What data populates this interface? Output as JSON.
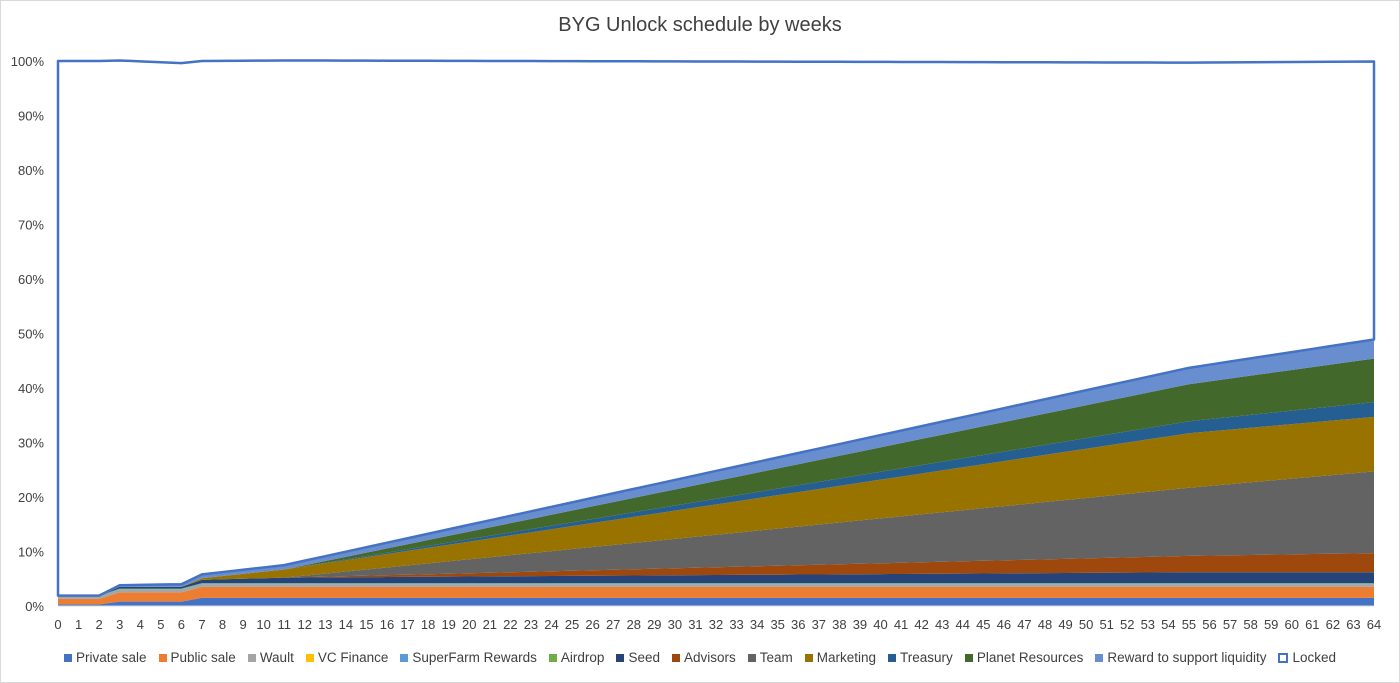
{
  "chart_data": {
    "type": "area",
    "stacked": true,
    "title": "BYG Unlock schedule by weeks",
    "x": [
      0,
      1,
      2,
      3,
      4,
      5,
      6,
      7,
      8,
      9,
      10,
      11,
      12,
      13,
      14,
      15,
      16,
      17,
      18,
      19,
      20,
      21,
      22,
      23,
      24,
      25,
      26,
      27,
      28,
      29,
      30,
      31,
      32,
      33,
      34,
      35,
      36,
      37,
      38,
      39,
      40,
      41,
      42,
      43,
      44,
      45,
      46,
      47,
      48,
      49,
      50,
      51,
      52,
      53,
      54,
      55,
      56,
      57,
      58,
      59,
      60,
      61,
      62,
      63,
      64
    ],
    "ylim": [
      0,
      100
    ],
    "y_ticks": [
      "0%",
      "10%",
      "20%",
      "30%",
      "40%",
      "50%",
      "60%",
      "70%",
      "80%",
      "90%",
      "100%"
    ],
    "grid": false,
    "legend_position": "bottom",
    "series_info": [
      {
        "name": "Private sale",
        "color": "#4472c4"
      },
      {
        "name": "Public sale",
        "color": "#ed7d31"
      },
      {
        "name": "Wault",
        "color": "#a5a5a5"
      },
      {
        "name": "VC Finance",
        "color": "#ffc000"
      },
      {
        "name": "SuperFarm Rewards",
        "color": "#5b9bd5"
      },
      {
        "name": "Airdrop",
        "color": "#70ad47"
      },
      {
        "name": "Seed",
        "color": "#264478"
      },
      {
        "name": "Advisors",
        "color": "#9e480e"
      },
      {
        "name": "Team",
        "color": "#636363"
      },
      {
        "name": "Marketing",
        "color": "#997300"
      },
      {
        "name": "Treasury",
        "color": "#255e91"
      },
      {
        "name": "Planet Resources",
        "color": "#43682b"
      },
      {
        "name": "Reward to support liquidity",
        "color": "#698ed0"
      },
      {
        "name": "Locked",
        "color": "#4472c4",
        "style": "outline"
      }
    ],
    "series": [
      {
        "name": "Private sale",
        "keypoints": [
          [
            0,
            0.3
          ],
          [
            2,
            0.3
          ],
          [
            3,
            0.8
          ],
          [
            6,
            0.8
          ],
          [
            7,
            1.5
          ],
          [
            64,
            1.5
          ]
        ]
      },
      {
        "name": "Public sale",
        "keypoints": [
          [
            0,
            1.0
          ],
          [
            2,
            1.0
          ],
          [
            3,
            1.7
          ],
          [
            6,
            1.7
          ],
          [
            7,
            2.0
          ],
          [
            64,
            2.0
          ]
        ]
      },
      {
        "name": "Wault",
        "keypoints": [
          [
            0,
            0.4
          ],
          [
            2,
            0.4
          ],
          [
            3,
            0.5
          ],
          [
            64,
            0.5
          ]
        ]
      },
      {
        "name": "VC Finance",
        "keypoints": [
          [
            0,
            0
          ],
          [
            64,
            0
          ]
        ]
      },
      {
        "name": "SuperFarm Rewards",
        "keypoints": [
          [
            0,
            0.1
          ],
          [
            64,
            0.1
          ]
        ]
      },
      {
        "name": "Airdrop",
        "keypoints": [
          [
            0,
            0.1
          ],
          [
            64,
            0.1
          ]
        ]
      },
      {
        "name": "Seed",
        "keypoints": [
          [
            0,
            0
          ],
          [
            2,
            0
          ],
          [
            3,
            0.3
          ],
          [
            6,
            0.3
          ],
          [
            7,
            0.6
          ],
          [
            11,
            1.0
          ],
          [
            55,
            2.0
          ],
          [
            64,
            2.0
          ]
        ]
      },
      {
        "name": "Advisors",
        "keypoints": [
          [
            0,
            0
          ],
          [
            11,
            0
          ],
          [
            55,
            3.0
          ],
          [
            64,
            3.5
          ]
        ]
      },
      {
        "name": "Team",
        "keypoints": [
          [
            0,
            0
          ],
          [
            11,
            0
          ],
          [
            55,
            12.5
          ],
          [
            64,
            15.0
          ]
        ]
      },
      {
        "name": "Marketing",
        "keypoints": [
          [
            0,
            0
          ],
          [
            6,
            0
          ],
          [
            7,
            0.3
          ],
          [
            11,
            1.5
          ],
          [
            55,
            10.0
          ],
          [
            64,
            10.0
          ]
        ]
      },
      {
        "name": "Treasury",
        "keypoints": [
          [
            0,
            0
          ],
          [
            11,
            0
          ],
          [
            55,
            2.2
          ],
          [
            64,
            2.7
          ]
        ]
      },
      {
        "name": "Planet Resources",
        "keypoints": [
          [
            0,
            0
          ],
          [
            11,
            0
          ],
          [
            55,
            6.8
          ],
          [
            64,
            8.0
          ]
        ]
      },
      {
        "name": "Reward to support liquidity",
        "keypoints": [
          [
            0,
            0
          ],
          [
            2,
            0
          ],
          [
            3,
            0.3
          ],
          [
            6,
            0.5
          ],
          [
            7,
            0.7
          ],
          [
            11,
            0.8
          ],
          [
            55,
            3.0
          ],
          [
            64,
            3.5
          ]
        ]
      },
      {
        "name": "Locked",
        "keypoints": [
          [
            0,
            98.1
          ],
          [
            2,
            98.1
          ],
          [
            3,
            96.3
          ],
          [
            6,
            95.6
          ],
          [
            7,
            94.2
          ],
          [
            11,
            92.6
          ],
          [
            55,
            56.0
          ],
          [
            64,
            51.0
          ]
        ]
      }
    ]
  }
}
